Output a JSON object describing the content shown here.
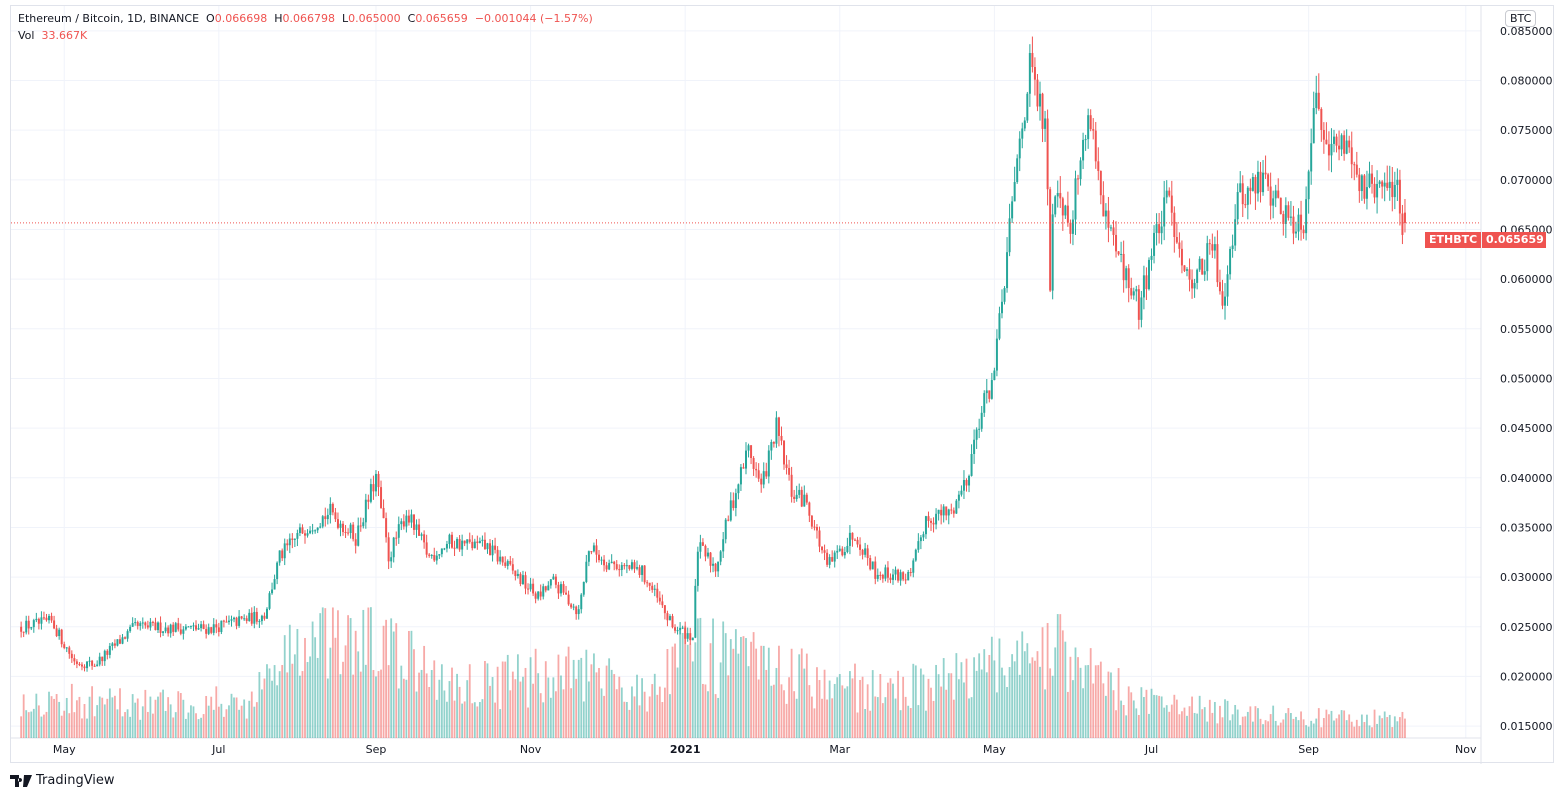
{
  "header": {
    "symbol_title": "Ethereum / Bitcoin, 1D, BINANCE",
    "open_label": "O",
    "open": "0.066698",
    "high_label": "H",
    "high": "0.066798",
    "low_label": "L",
    "low": "0.065000",
    "close_label": "C",
    "close": "0.065659",
    "change": "−0.001044 (−1.57%)",
    "vol_label": "Vol",
    "vol": "33.667K"
  },
  "currency_button": "BTC",
  "price_tag": {
    "symbol": "ETHBTC",
    "price": "0.065659"
  },
  "branding": "TradingView",
  "colors": {
    "up": "#26a69a",
    "down": "#ef5350",
    "grid": "#f0f3fa",
    "text": "#131722"
  },
  "chart_data": {
    "type": "candlestick",
    "title": "Ethereum / Bitcoin, 1D, BINANCE",
    "ylabel": "BTC",
    "ylim": [
      0.0138,
      0.0875
    ],
    "y_ticks": [
      "0.085000",
      "0.080000",
      "0.075000",
      "0.070000",
      "0.065000",
      "0.060000",
      "0.055000",
      "0.050000",
      "0.045000",
      "0.040000",
      "0.035000",
      "0.030000",
      "0.025000",
      "0.020000",
      "0.015000"
    ],
    "x_ticks": [
      {
        "label": "May",
        "day": 17,
        "bold": false
      },
      {
        "label": "Jul",
        "day": 78,
        "bold": false
      },
      {
        "label": "Sep",
        "day": 140,
        "bold": false
      },
      {
        "label": "Nov",
        "day": 201,
        "bold": false
      },
      {
        "label": "2021",
        "day": 262,
        "bold": true
      },
      {
        "label": "Mar",
        "day": 323,
        "bold": false
      },
      {
        "label": "May",
        "day": 384,
        "bold": false
      },
      {
        "label": "Jul",
        "day": 446,
        "bold": false
      },
      {
        "label": "Sep",
        "day": 508,
        "bold": false
      },
      {
        "label": "Nov",
        "day": 570,
        "bold": false
      }
    ],
    "x_range_days": [
      -4,
      576
    ],
    "last_price": 0.065659,
    "close_anchors_day_price": [
      [
        0,
        0.025
      ],
      [
        12,
        0.0255
      ],
      [
        21,
        0.0215
      ],
      [
        29,
        0.0212
      ],
      [
        45,
        0.025
      ],
      [
        74,
        0.0248
      ],
      [
        96,
        0.0262
      ],
      [
        102,
        0.032
      ],
      [
        112,
        0.035
      ],
      [
        122,
        0.0365
      ],
      [
        132,
        0.034
      ],
      [
        140,
        0.04
      ],
      [
        145,
        0.032
      ],
      [
        152,
        0.0365
      ],
      [
        161,
        0.032
      ],
      [
        169,
        0.0335
      ],
      [
        184,
        0.033
      ],
      [
        192,
        0.031
      ],
      [
        204,
        0.028
      ],
      [
        210,
        0.0295
      ],
      [
        220,
        0.0265
      ],
      [
        224,
        0.033
      ],
      [
        231,
        0.0315
      ],
      [
        245,
        0.0305
      ],
      [
        257,
        0.025
      ],
      [
        265,
        0.024
      ],
      [
        267,
        0.033
      ],
      [
        274,
        0.031
      ],
      [
        280,
        0.037
      ],
      [
        287,
        0.043
      ],
      [
        292,
        0.039
      ],
      [
        298,
        0.045
      ],
      [
        304,
        0.0385
      ],
      [
        310,
        0.0375
      ],
      [
        318,
        0.031
      ],
      [
        329,
        0.0345
      ],
      [
        337,
        0.0305
      ],
      [
        351,
        0.03
      ],
      [
        357,
        0.036
      ],
      [
        367,
        0.0365
      ],
      [
        373,
        0.04
      ],
      [
        378,
        0.046
      ],
      [
        384,
        0.0505
      ],
      [
        388,
        0.06
      ],
      [
        394,
        0.074
      ],
      [
        398,
        0.081
      ],
      [
        404,
        0.075
      ],
      [
        406,
        0.06
      ],
      [
        408,
        0.07
      ],
      [
        414,
        0.066
      ],
      [
        418,
        0.072
      ],
      [
        422,
        0.077
      ],
      [
        427,
        0.066
      ],
      [
        433,
        0.062
      ],
      [
        441,
        0.057
      ],
      [
        447,
        0.064
      ],
      [
        453,
        0.068
      ],
      [
        460,
        0.06
      ],
      [
        466,
        0.061
      ],
      [
        470,
        0.0635
      ],
      [
        474,
        0.058
      ],
      [
        480,
        0.068
      ],
      [
        490,
        0.07
      ],
      [
        500,
        0.066
      ],
      [
        506,
        0.066
      ],
      [
        510,
        0.078
      ],
      [
        518,
        0.073
      ],
      [
        524,
        0.074
      ],
      [
        529,
        0.069
      ],
      [
        539,
        0.069
      ],
      [
        543,
        0.07
      ],
      [
        545,
        0.065
      ],
      [
        546,
        0.065659
      ]
    ],
    "volume_unit": "K",
    "volume_anchors_day_value": [
      [
        0,
        70
      ],
      [
        30,
        60
      ],
      [
        90,
        60
      ],
      [
        105,
        150
      ],
      [
        140,
        160
      ],
      [
        170,
        90
      ],
      [
        215,
        110
      ],
      [
        250,
        80
      ],
      [
        265,
        150
      ],
      [
        300,
        110
      ],
      [
        340,
        80
      ],
      [
        370,
        100
      ],
      [
        390,
        130
      ],
      [
        410,
        150
      ],
      [
        440,
        60
      ],
      [
        500,
        35
      ],
      [
        546,
        33.667
      ]
    ]
  }
}
